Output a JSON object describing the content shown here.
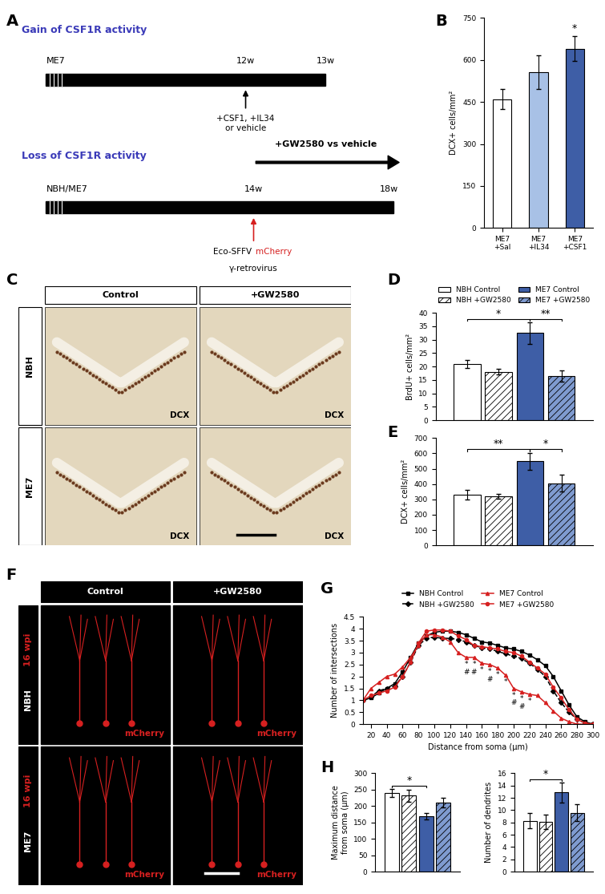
{
  "chart_data": [
    {
      "panel": "B",
      "type": "bar",
      "categories": [
        "ME7\n+Sal",
        "ME7\n+IL34",
        "ME7\n+CSF1"
      ],
      "values": [
        460,
        555,
        640
      ],
      "errors": [
        35,
        60,
        45
      ],
      "colors": [
        "#ffffff",
        "#a8c1e6",
        "#3e5ea6"
      ],
      "ylabel": "DCX+ cells/mm²",
      "ylim": [
        0,
        750
      ],
      "yticks": [
        0,
        150,
        300,
        450,
        600,
        750
      ],
      "annotations": [
        {
          "bar": 2,
          "text": "*"
        }
      ]
    },
    {
      "panel": "D",
      "type": "bar",
      "categories": [
        null
      ],
      "series": [
        {
          "name": "NBH Control",
          "color": "#ffffff",
          "values": [
            21
          ],
          "errors": [
            1.5
          ]
        },
        {
          "name": "NBH +GW2580",
          "color": "#ffffff",
          "values": [
            18
          ],
          "errors": [
            1
          ]
        },
        {
          "name": "ME7 Control",
          "color": "#3e5ea6",
          "values": [
            32.5
          ],
          "errors": [
            4
          ]
        },
        {
          "name": "ME7 +GW2580",
          "color": "#7f9bd0",
          "values": [
            16.5
          ],
          "errors": [
            2
          ]
        }
      ],
      "ylabel": "BrdU+ cells/mm²",
      "ylim": [
        0,
        40
      ],
      "yticks": [
        0,
        5,
        10,
        15,
        20,
        25,
        30,
        35,
        40
      ],
      "tick_labels": "y",
      "legend": "top",
      "annotations": [
        {
          "from": 0,
          "to": 2,
          "text": "*"
        },
        {
          "from": 2,
          "to": 3,
          "text": "**"
        }
      ]
    },
    {
      "panel": "E",
      "type": "bar",
      "categories": [
        null
      ],
      "series": [
        {
          "color": "#ffffff",
          "values": [
            330
          ],
          "errors": [
            30
          ]
        },
        {
          "color": "#ffffff",
          "values": [
            320
          ],
          "errors": [
            15
          ]
        },
        {
          "color": "#3e5ea6",
          "values": [
            550
          ],
          "errors": [
            55
          ]
        },
        {
          "color": "#7f9bd0",
          "values": [
            405
          ],
          "errors": [
            55
          ]
        }
      ],
      "ylabel": "DCX+ cells/mm²",
      "ylim": [
        0,
        700
      ],
      "yticks": [
        0,
        100,
        200,
        300,
        400,
        500,
        600,
        700
      ],
      "tick_labels": "y",
      "annotations": [
        {
          "from": 0,
          "to": 2,
          "text": "**"
        },
        {
          "from": 2,
          "to": 3,
          "text": "*"
        }
      ]
    },
    {
      "panel": "G",
      "type": "line",
      "x": [
        10,
        20,
        30,
        40,
        50,
        60,
        70,
        80,
        90,
        100,
        110,
        120,
        130,
        140,
        150,
        160,
        170,
        180,
        190,
        200,
        210,
        220,
        230,
        240,
        250,
        260,
        270,
        280,
        290,
        300
      ],
      "series": [
        {
          "name": "NBH Control",
          "color": "#000000",
          "marker": "square",
          "line_style": "solid",
          "values": [
            1,
            1.1,
            1.3,
            1.5,
            1.7,
            2.2,
            2.8,
            3.4,
            3.7,
            3.85,
            3.9,
            3.9,
            3.85,
            3.75,
            3.6,
            3.45,
            3.4,
            3.3,
            3.2,
            3.15,
            3.05,
            2.9,
            2.7,
            2.45,
            2.0,
            1.4,
            0.8,
            0.3,
            0.1,
            0
          ]
        },
        {
          "name": "NBH +GW2580",
          "color": "#000000",
          "marker": "diamond",
          "line_style": "dashed",
          "values": [
            1,
            1.15,
            1.4,
            1.5,
            1.6,
            2.0,
            2.6,
            3.3,
            3.6,
            3.65,
            3.6,
            3.6,
            3.55,
            3.45,
            3.3,
            3.2,
            3.15,
            3.05,
            2.95,
            2.85,
            2.75,
            2.55,
            2.3,
            2.0,
            1.4,
            0.9,
            0.5,
            0.2,
            0.05,
            0
          ]
        },
        {
          "name": "ME7 Control",
          "color": "#d62020",
          "marker": "triangle",
          "line_style": "solid",
          "values": [
            1,
            1.5,
            1.75,
            2.0,
            2.1,
            2.4,
            2.8,
            3.3,
            3.75,
            3.75,
            3.65,
            3.45,
            3.0,
            2.8,
            2.8,
            2.55,
            2.5,
            2.35,
            2.05,
            1.5,
            1.35,
            1.25,
            1.2,
            0.9,
            0.55,
            0.25,
            0.1,
            0,
            0,
            0
          ]
        },
        {
          "name": "ME7 +GW2580",
          "color": "#d62020",
          "marker": "circle",
          "line_style": "solid",
          "values": [
            1,
            1.2,
            1.3,
            1.4,
            1.55,
            2.0,
            2.6,
            3.4,
            3.9,
            3.95,
            3.95,
            3.9,
            3.7,
            3.55,
            3.3,
            3.25,
            3.2,
            3.15,
            3.05,
            3.0,
            2.85,
            2.6,
            2.35,
            2.1,
            1.55,
            1.1,
            0.6,
            0.2,
            0.05,
            0
          ]
        }
      ],
      "xlabel": "Distance from soma (µm)",
      "ylabel": "Number of intersections",
      "xlim": [
        10,
        300
      ],
      "xticks": [
        20,
        40,
        60,
        80,
        100,
        120,
        140,
        160,
        180,
        200,
        220,
        240,
        260,
        280,
        300
      ],
      "ylim": [
        0,
        4.5
      ],
      "yticks": [
        0,
        0.5,
        1,
        1.5,
        2,
        2.5,
        3,
        3.5,
        4,
        4.5
      ],
      "legend": "top",
      "annotations": [
        {
          "series": "ME7 Control",
          "x": 140,
          "text": "*"
        },
        {
          "series": "ME7 Control",
          "x": 150,
          "text": "*"
        },
        {
          "series": "ME7 Control",
          "x": 160,
          "text": "*"
        },
        {
          "series": "ME7 Control",
          "x": 170,
          "text": "*"
        },
        {
          "series": "ME7 Control",
          "x": 180,
          "text": "*"
        },
        {
          "series": "ME7 Control",
          "x": 190,
          "text": "*"
        },
        {
          "series": "ME7 Control",
          "x": 200,
          "text": "*"
        },
        {
          "series": "ME7 Control",
          "x": 210,
          "text": "*"
        },
        {
          "series": "ME7 Control",
          "x": 220,
          "text": "*"
        },
        {
          "series": "ME7 Control",
          "x": 140,
          "text": "#"
        },
        {
          "series": "ME7 Control",
          "x": 150,
          "text": "#"
        },
        {
          "series": "ME7 Control",
          "x": 170,
          "text": "#"
        },
        {
          "series": "ME7 Control",
          "x": 200,
          "text": "#"
        },
        {
          "series": "ME7 Control",
          "x": 210,
          "text": "#"
        }
      ]
    },
    {
      "panel": "H",
      "type": "bar",
      "categories": [
        null
      ],
      "series": [
        {
          "color": "#ffffff",
          "values": [
            240
          ],
          "errors": [
            12
          ]
        },
        {
          "color": "#ffffff",
          "values": [
            232
          ],
          "errors": [
            18
          ]
        },
        {
          "color": "#3e5ea6",
          "values": [
            170
          ],
          "errors": [
            10
          ]
        },
        {
          "color": "#7f9bd0",
          "values": [
            210
          ],
          "errors": [
            15
          ]
        }
      ],
      "ylabel": "Maximum distance\nfrom soma (µm)",
      "ylim": [
        0,
        300
      ],
      "yticks": [
        0,
        50,
        100,
        150,
        200,
        250,
        300
      ],
      "tick_labels": "y",
      "annotations": [
        {
          "from": 0,
          "to": 2,
          "text": "*"
        }
      ]
    },
    {
      "type": "bar",
      "categories": [
        null
      ],
      "series": [
        {
          "color": "#ffffff",
          "values": [
            8.3
          ],
          "errors": [
            1.2
          ]
        },
        {
          "color": "#ffffff",
          "values": [
            8.1
          ],
          "errors": [
            1.2
          ]
        },
        {
          "color": "#3e5ea6",
          "values": [
            12.9
          ],
          "errors": [
            1.6
          ]
        },
        {
          "color": "#7f9bd0",
          "values": [
            9.6
          ],
          "errors": [
            1.4
          ]
        }
      ],
      "ylabel": "Number of dendrites",
      "ylim": [
        0,
        16
      ],
      "yticks": [
        0,
        2,
        4,
        6,
        8,
        10,
        12,
        14,
        16
      ],
      "tick_labels": "y",
      "annotations": [
        {
          "from": 0,
          "to": 2,
          "text": "*"
        }
      ]
    }
  ],
  "diagram": {
    "panel": "A",
    "gain": {
      "title": "Gain of CSF1R activity",
      "group": "ME7",
      "marks": [
        "12w",
        "13w"
      ],
      "treatment": "+CSF1, +IL34\nor vehicle"
    },
    "loss": {
      "title": "Loss of CSF1R activity",
      "group": "NBH/ME7",
      "marks": [
        "14w",
        "18w"
      ],
      "treatment": "+GW2580 vs vehicle",
      "virus": [
        "Eco-SFFV",
        "mCherry",
        "γ-retrovirus"
      ]
    }
  },
  "images": [
    {
      "panel": "C",
      "columns": [
        "Control",
        "+GW2580"
      ],
      "rows": [
        "NBH",
        "ME7"
      ],
      "stain": "DCX"
    },
    {
      "panel": "F",
      "columns": [
        "Control",
        "+GW2580"
      ],
      "rows": [
        "NBH",
        "ME7"
      ],
      "timepoint": "16 wpi",
      "stain": "mCherry"
    }
  ]
}
